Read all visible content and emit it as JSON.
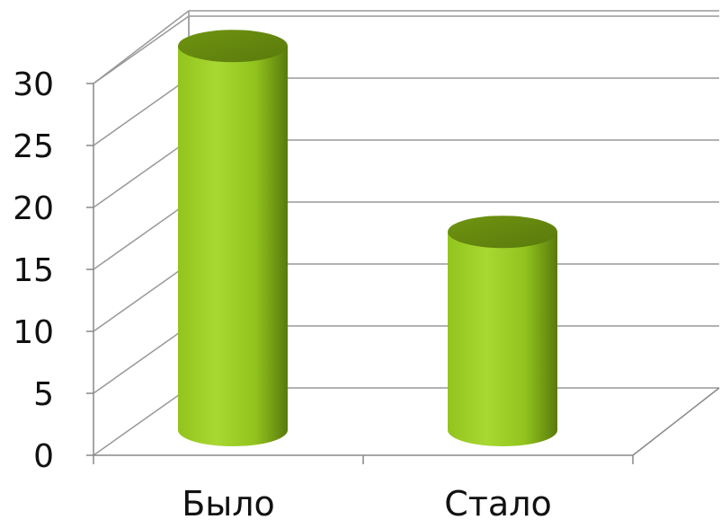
{
  "chart_data": {
    "type": "bar",
    "style": "3d-cylinder",
    "title": "",
    "xlabel": "",
    "ylabel": "",
    "categories": [
      "Было",
      "Стало"
    ],
    "values": [
      31,
      16
    ],
    "ylim": [
      0,
      30
    ],
    "yticks": [
      0,
      5,
      10,
      15,
      20,
      25,
      30
    ],
    "grid": true,
    "legend": "none",
    "colors": {
      "bar_light": "#a8d832",
      "bar_mid": "#92c41e",
      "bar_dark": "#5a7a0c",
      "bar_top": "#6f9410",
      "grid": "#999999",
      "axis": "#888888",
      "text": "#111111"
    }
  }
}
